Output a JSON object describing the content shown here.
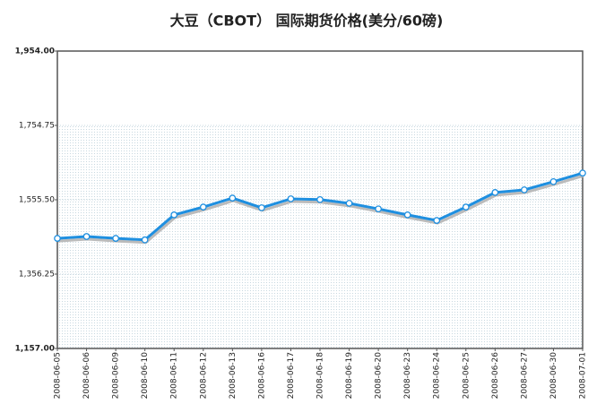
{
  "chart_data": {
    "type": "line",
    "title": "大豆（CBOT） 国际期货价格(美分/60磅)",
    "categories": [
      "2008-06-05",
      "2008-06-06",
      "2008-06-09",
      "2008-06-10",
      "2008-06-11",
      "2008-06-12",
      "2008-06-13",
      "2008-06-16",
      "2008-06-17",
      "2008-06-18",
      "2008-06-19",
      "2008-06-20",
      "2008-06-23",
      "2008-06-24",
      "2008-06-25",
      "2008-06-26",
      "2008-06-27",
      "2008-06-30",
      "2008-07-01"
    ],
    "values": [
      1452,
      1457,
      1452,
      1448,
      1515,
      1536,
      1560,
      1534,
      1558,
      1556,
      1546,
      1531,
      1515,
      1500,
      1536,
      1575,
      1582,
      1604,
      1627
    ],
    "color": "#1e8fe0",
    "ylim": [
      1157,
      1954
    ],
    "yticks": [
      {
        "value": 1157,
        "label": "1,157.00"
      },
      {
        "value": 1356.25,
        "label": "1,356.25"
      },
      {
        "value": 1555.5,
        "label": "1,555.50"
      },
      {
        "value": 1754.75,
        "label": "1,754.75"
      },
      {
        "value": 1954,
        "label": "1,954.00"
      }
    ],
    "grid": true
  }
}
